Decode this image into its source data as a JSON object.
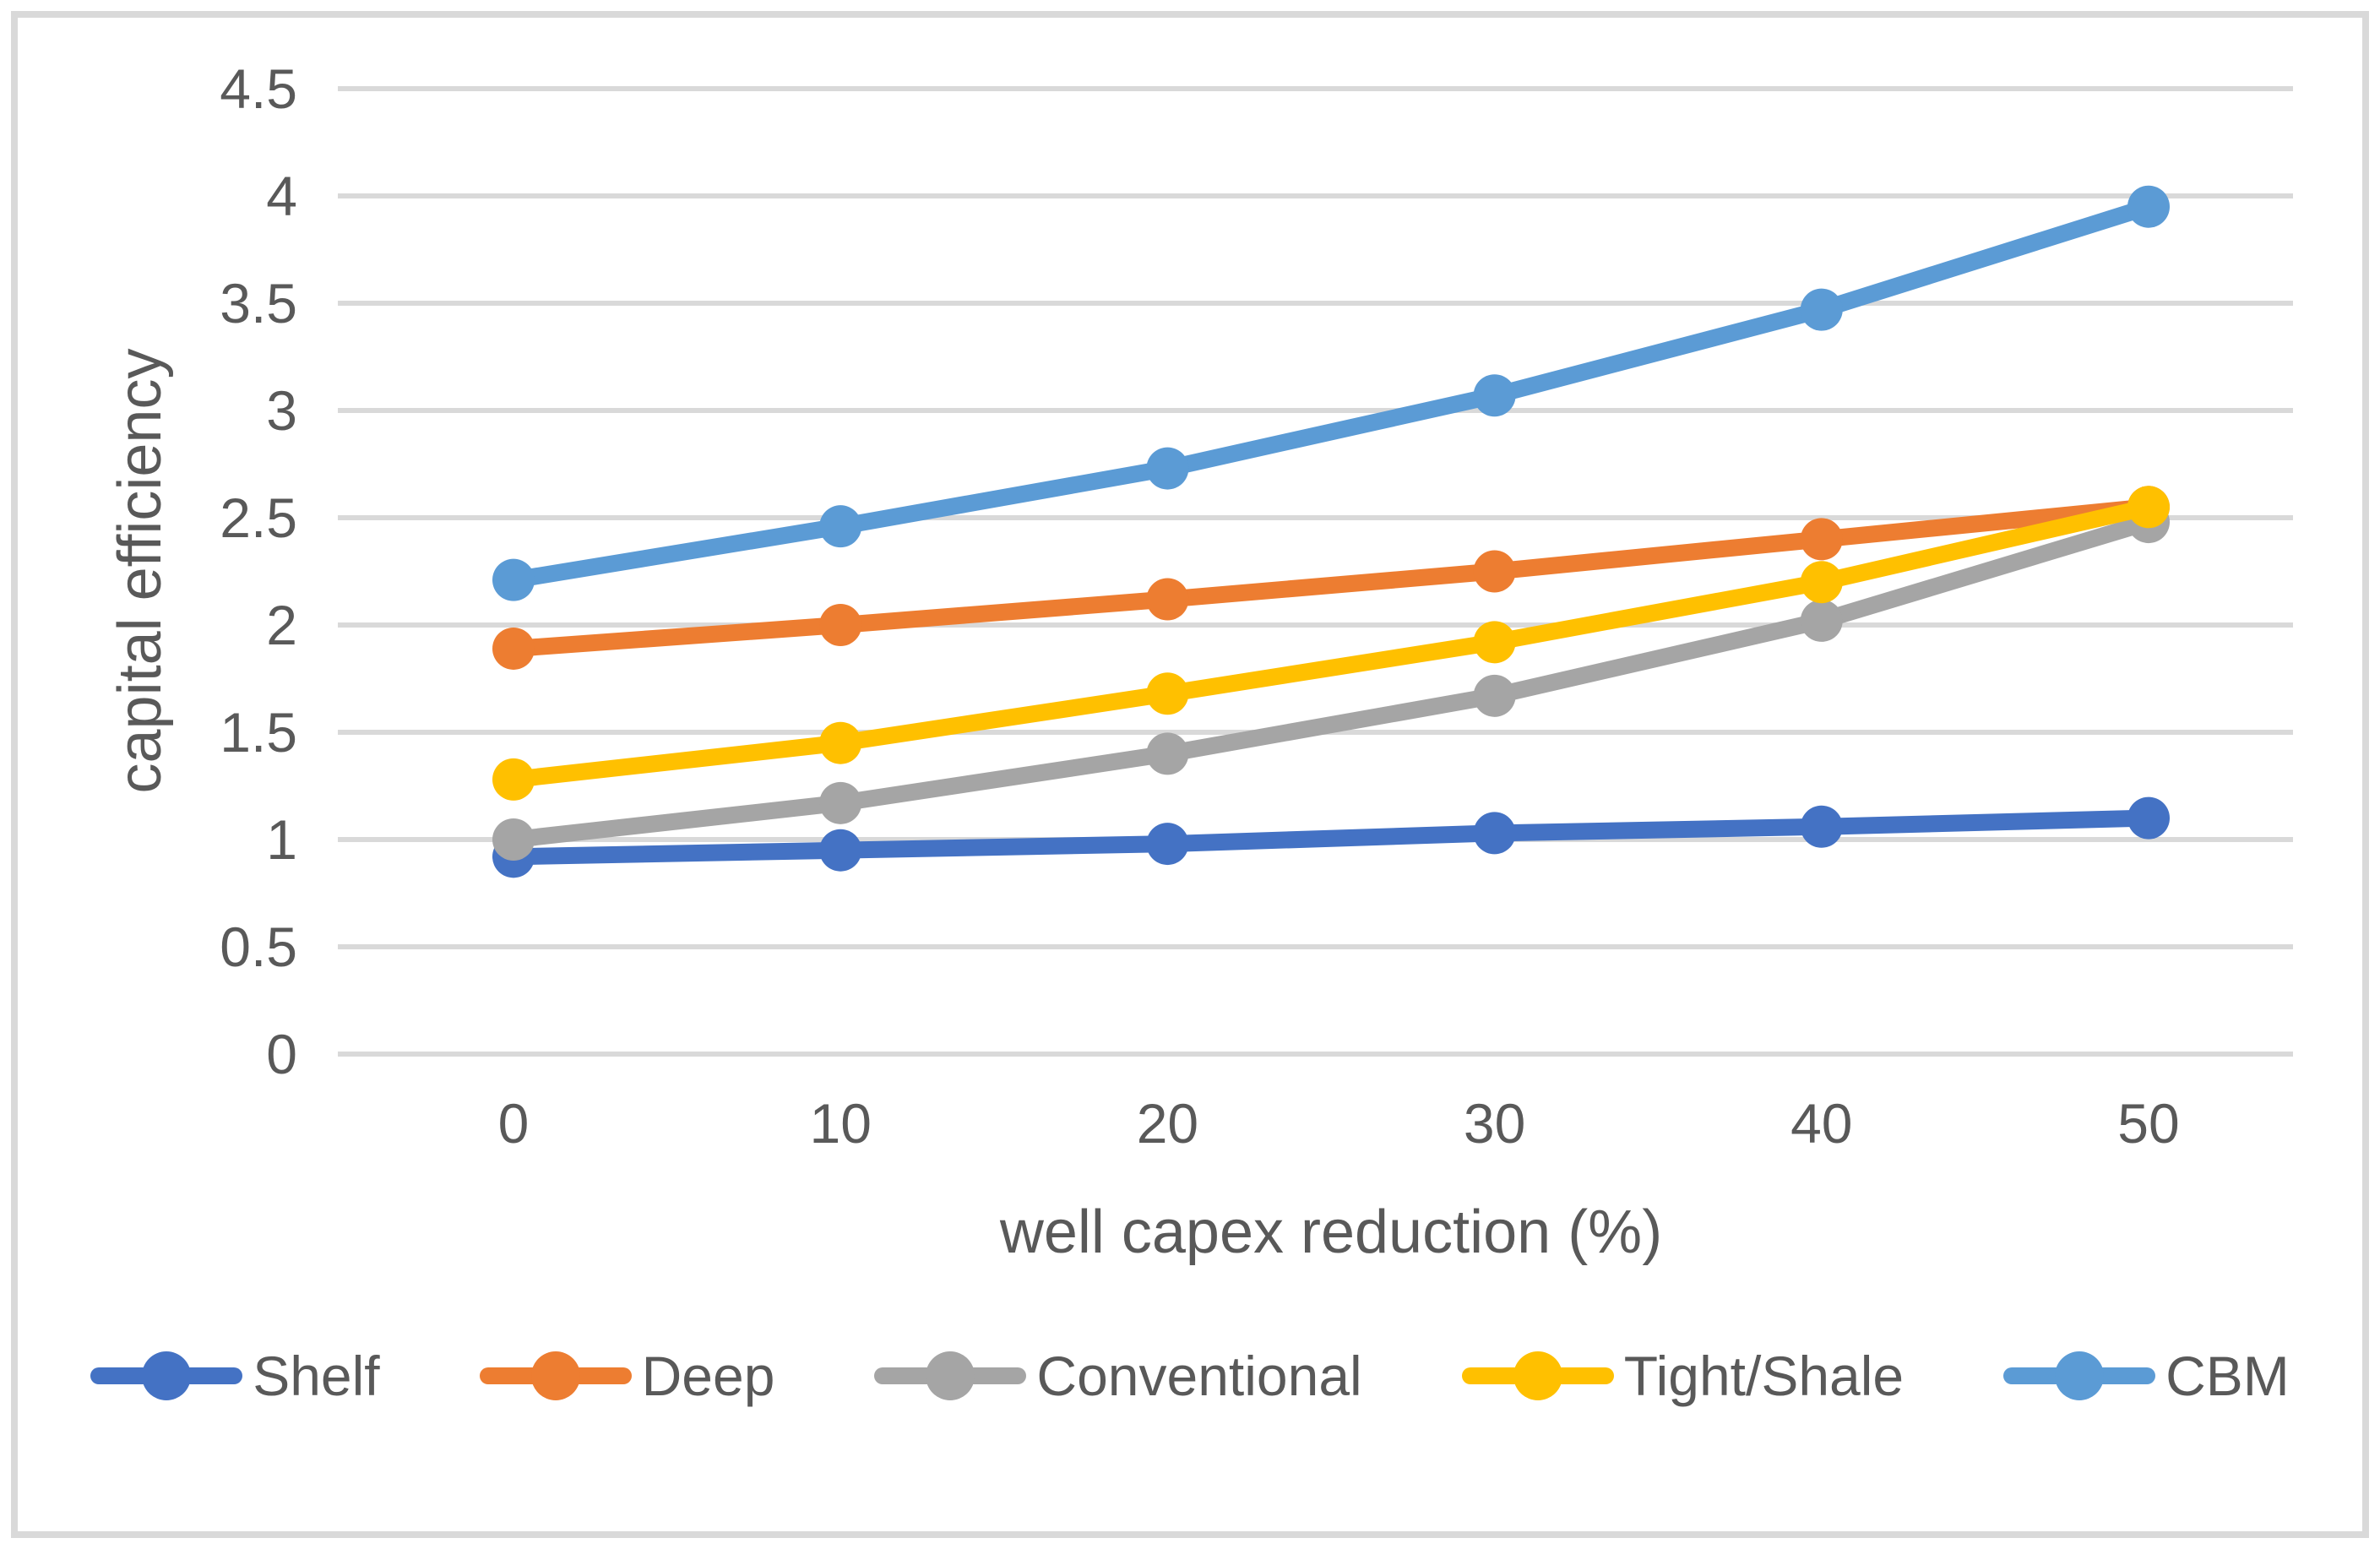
{
  "chart_data": {
    "type": "line",
    "title": "",
    "xlabel": "well capex reduction (%)",
    "ylabel": "capital efficiency",
    "categories": [
      0,
      10,
      20,
      30,
      40,
      50
    ],
    "x_tick_labels": [
      "0",
      "10",
      "20",
      "30",
      "40",
      "50"
    ],
    "y_ticks": [
      0,
      0.5,
      1,
      1.5,
      2,
      2.5,
      3,
      3.5,
      4,
      4.5
    ],
    "y_tick_labels": [
      "0",
      "0.5",
      "1",
      "1.5",
      "2",
      "2.5",
      "3",
      "3.5",
      "4",
      "4.5"
    ],
    "ylim": [
      0,
      4.5
    ],
    "grid": "horizontal",
    "legend_position": "bottom",
    "series": [
      {
        "name": "Shelf",
        "color": "#4472C4",
        "values": [
          0.92,
          0.95,
          0.98,
          1.03,
          1.06,
          1.1
        ]
      },
      {
        "name": "Deep",
        "color": "#ED7D31",
        "values": [
          1.89,
          2.0,
          2.12,
          2.25,
          2.4,
          2.55
        ]
      },
      {
        "name": "Conventional",
        "color": "#A5A5A5",
        "values": [
          1.0,
          1.17,
          1.4,
          1.67,
          2.02,
          2.48
        ]
      },
      {
        "name": "Tight/Shale",
        "color": "#FFC000",
        "values": [
          1.28,
          1.45,
          1.68,
          1.92,
          2.2,
          2.55
        ]
      },
      {
        "name": "CBM",
        "color": "#5B9BD5",
        "values": [
          2.21,
          2.46,
          2.73,
          3.07,
          3.47,
          3.95
        ]
      }
    ]
  },
  "colors": {
    "gridline": "#D9D9D9",
    "axis_text": "#595959",
    "frame_border": "#D9D9D9",
    "background": "#FFFFFF"
  }
}
